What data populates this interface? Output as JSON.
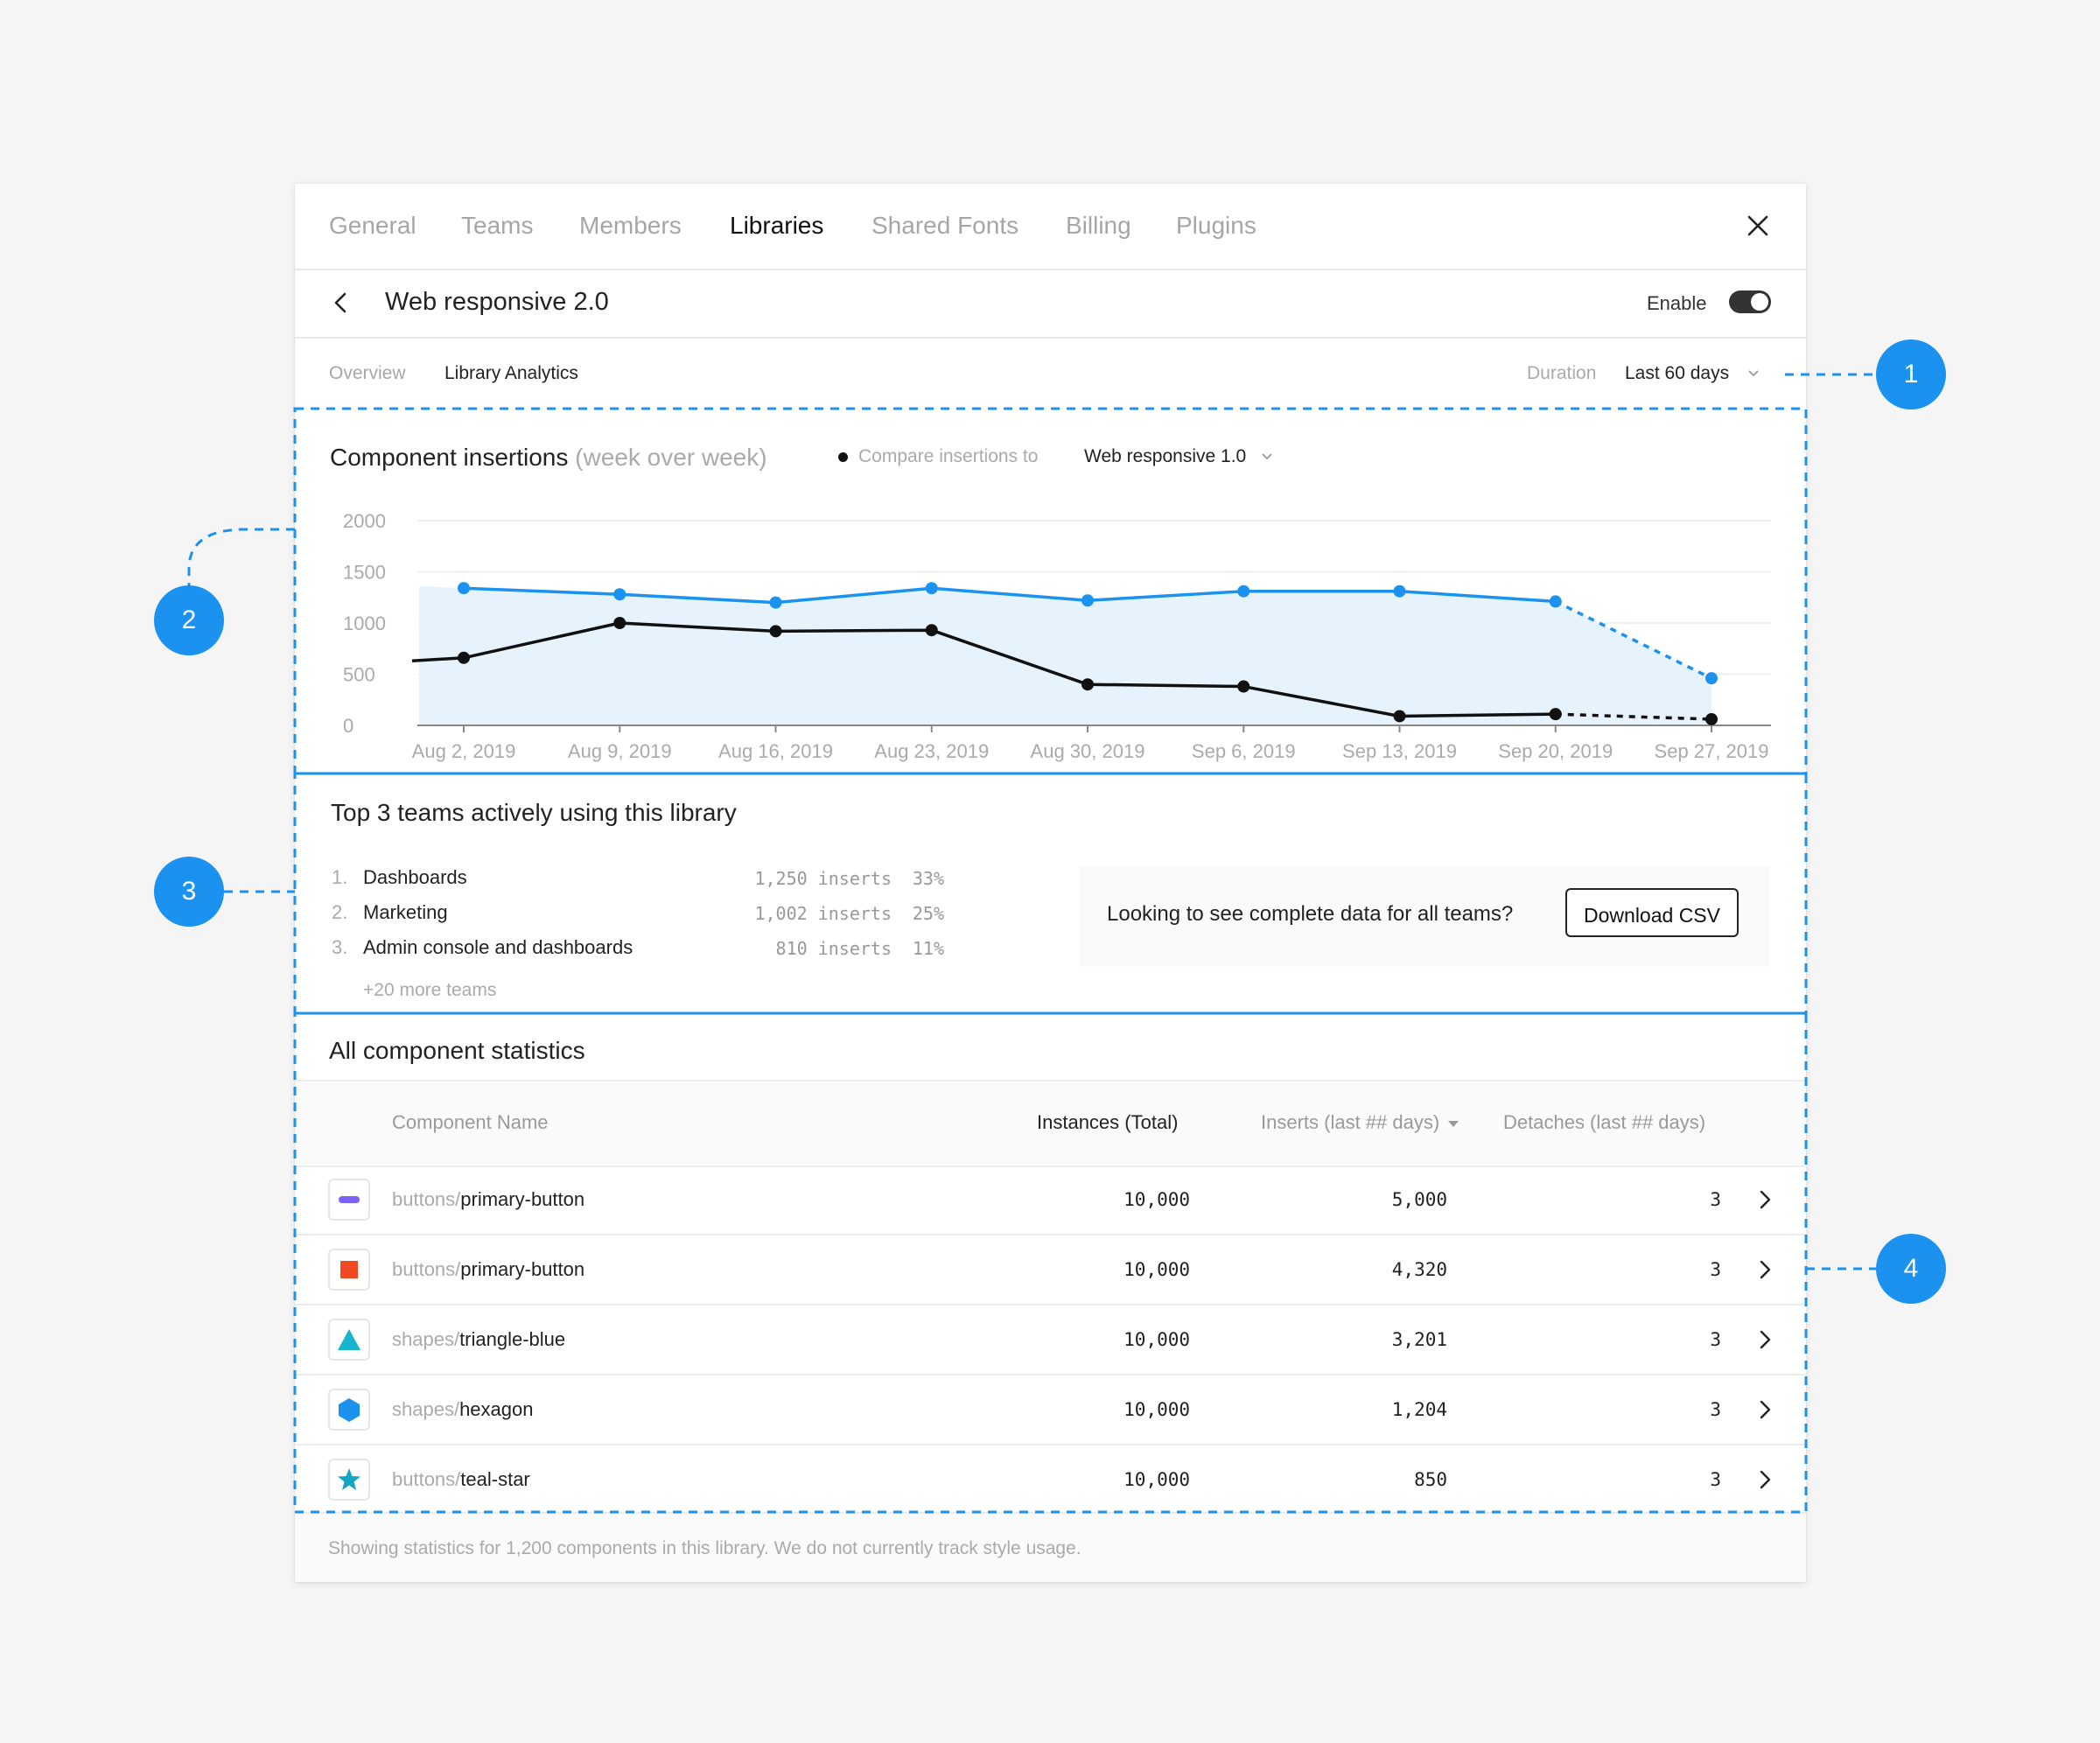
{
  "tabs": [
    {
      "label": "General",
      "active": false
    },
    {
      "label": "Teams",
      "active": false
    },
    {
      "label": "Members",
      "active": false
    },
    {
      "label": "Libraries",
      "active": true
    },
    {
      "label": "Shared Fonts",
      "active": false
    },
    {
      "label": "Billing",
      "active": false
    },
    {
      "label": "Plugins",
      "active": false
    }
  ],
  "header": {
    "title": "Web responsive 2.0",
    "enable_label": "Enable",
    "enabled": true
  },
  "subtabs": [
    {
      "label": "Overview",
      "active": false
    },
    {
      "label": "Library Analytics",
      "active": true
    }
  ],
  "duration": {
    "label": "Duration",
    "value": "Last 60 days"
  },
  "chart_section": {
    "title": "Component insertions",
    "title_muted": "(week over week)",
    "compare_label": "Compare insertions to",
    "compare_value": "Web responsive 1.0"
  },
  "chart_data": {
    "type": "line",
    "title": "Component insertions (week over week)",
    "x": [
      "Aug 2, 2019",
      "Aug 9, 2019",
      "Aug 16, 2019",
      "Aug 23, 2019",
      "Aug 30, 2019",
      "Sep 6, 2019",
      "Sep 13, 2019",
      "Sep 20, 2019",
      "Sep 27, 2019"
    ],
    "yticks": [
      0,
      500,
      1000,
      1500,
      2000
    ],
    "ylim": [
      0,
      2000
    ],
    "series": [
      {
        "name": "Web responsive 2.0",
        "color": "#1b92f0",
        "values": [
          1340,
          1280,
          1200,
          1340,
          1220,
          1310,
          1310,
          1210,
          460
        ],
        "area": true,
        "projected_last": true
      },
      {
        "name": "Web responsive 1.0",
        "color": "#111111",
        "values": [
          660,
          1000,
          920,
          930,
          400,
          380,
          90,
          110,
          60
        ],
        "projected_last": true
      }
    ],
    "grid": true
  },
  "teams": {
    "title": "Top 3 teams actively using this library",
    "items": [
      {
        "rank": "1.",
        "name": "Dashboards",
        "inserts": "1,250 inserts",
        "pct": "33%"
      },
      {
        "rank": "2.",
        "name": "Marketing",
        "inserts": "1,002 inserts",
        "pct": "25%"
      },
      {
        "rank": "3.",
        "name": "Admin console and dashboards",
        "inserts": "810 inserts",
        "pct": "11%"
      }
    ],
    "more": "+20 more teams",
    "csv_prompt": "Looking to see complete data for all teams?",
    "csv_button": "Download CSV"
  },
  "stats": {
    "title": "All component statistics",
    "columns": {
      "name": "Component Name",
      "instances": "Instances (Total)",
      "inserts": "Inserts (last ## days)",
      "detaches": "Detaches (last ## days)"
    },
    "rows": [
      {
        "icon": "pill-icon",
        "color": "#7b61ff",
        "prefix": "buttons/",
        "name": "primary-button",
        "instances": "10,000",
        "inserts": "5,000",
        "detaches": "3"
      },
      {
        "icon": "square-icon",
        "color": "#f24822",
        "prefix": "buttons/",
        "name": "primary-button",
        "instances": "10,000",
        "inserts": "4,320",
        "detaches": "3"
      },
      {
        "icon": "triangle-icon",
        "color": "#17b4cf",
        "prefix": "shapes/",
        "name": "triangle-blue",
        "instances": "10,000",
        "inserts": "3,201",
        "detaches": "3"
      },
      {
        "icon": "hexagon-icon",
        "color": "#1b92f0",
        "prefix": "shapes/",
        "name": "hexagon",
        "instances": "10,000",
        "inserts": "1,204",
        "detaches": "3"
      },
      {
        "icon": "star-icon",
        "color": "#14a5c4",
        "prefix": "buttons/",
        "name": "teal-star",
        "instances": "10,000",
        "inserts": "850",
        "detaches": "3"
      }
    ],
    "footer": "Showing statistics for 1,200 components in this library. We do not currently track style usage."
  },
  "callouts": [
    "1",
    "2",
    "3",
    "4"
  ],
  "colors": {
    "accent": "#1b92f0",
    "area_fill": "#e6f3fd",
    "line_dark": "#111111"
  }
}
